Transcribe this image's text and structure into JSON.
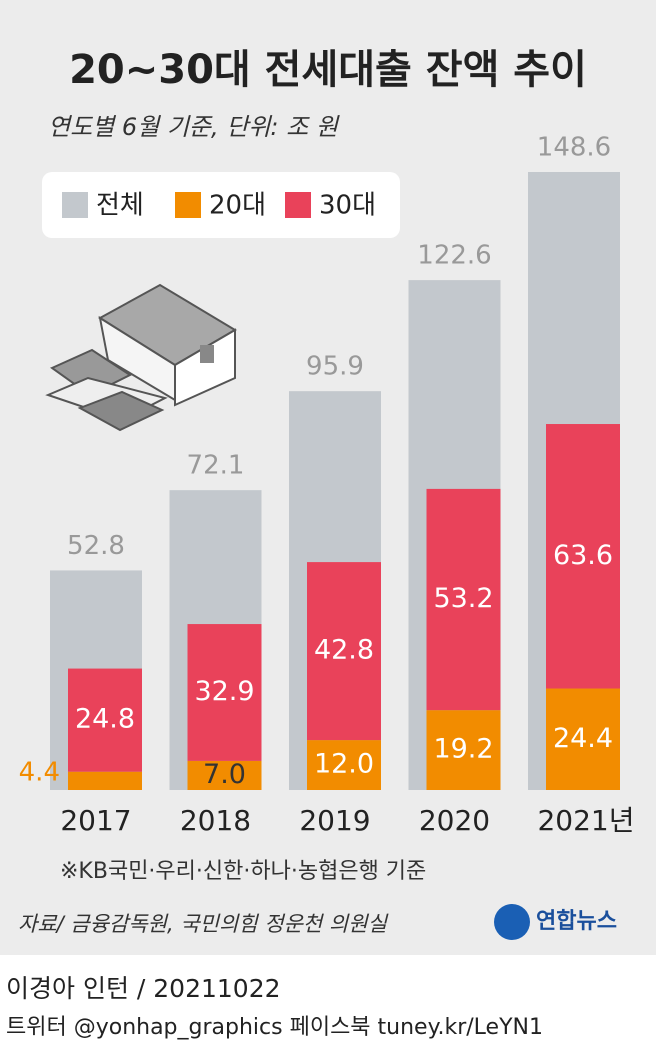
{
  "chart_data": {
    "type": "bar",
    "title": "20~30대 전세대출 잔액 추이",
    "subtitle": "연도별 6월 기준, 단위: 조 원",
    "categories": [
      "2017",
      "2018",
      "2019",
      "2020",
      "2021년"
    ],
    "series": [
      {
        "name": "전체",
        "color": "#c3c8cd",
        "values": [
          52.8,
          72.1,
          95.9,
          122.6,
          148.6
        ]
      },
      {
        "name": "20대",
        "color": "#f28c00",
        "values": [
          4.4,
          7.0,
          12.0,
          19.2,
          24.4
        ],
        "value_labels": [
          "4.4",
          "7.0",
          "12.0",
          "19.2",
          "24.4"
        ]
      },
      {
        "name": "30대",
        "color": "#e9425a",
        "values": [
          24.8,
          32.9,
          42.8,
          53.2,
          63.6
        ]
      }
    ],
    "note": "※KB국민·우리·신한·하나·농협은행 기준",
    "source": "자료/ 금융감독원, 국민의힘 정운천 의원실",
    "logo": "연합뉴스",
    "credit": "이경아 인턴 / 20211022",
    "social": "트위터 @yonhap_graphics  페이스북 tuney.kr/LeYN1"
  }
}
